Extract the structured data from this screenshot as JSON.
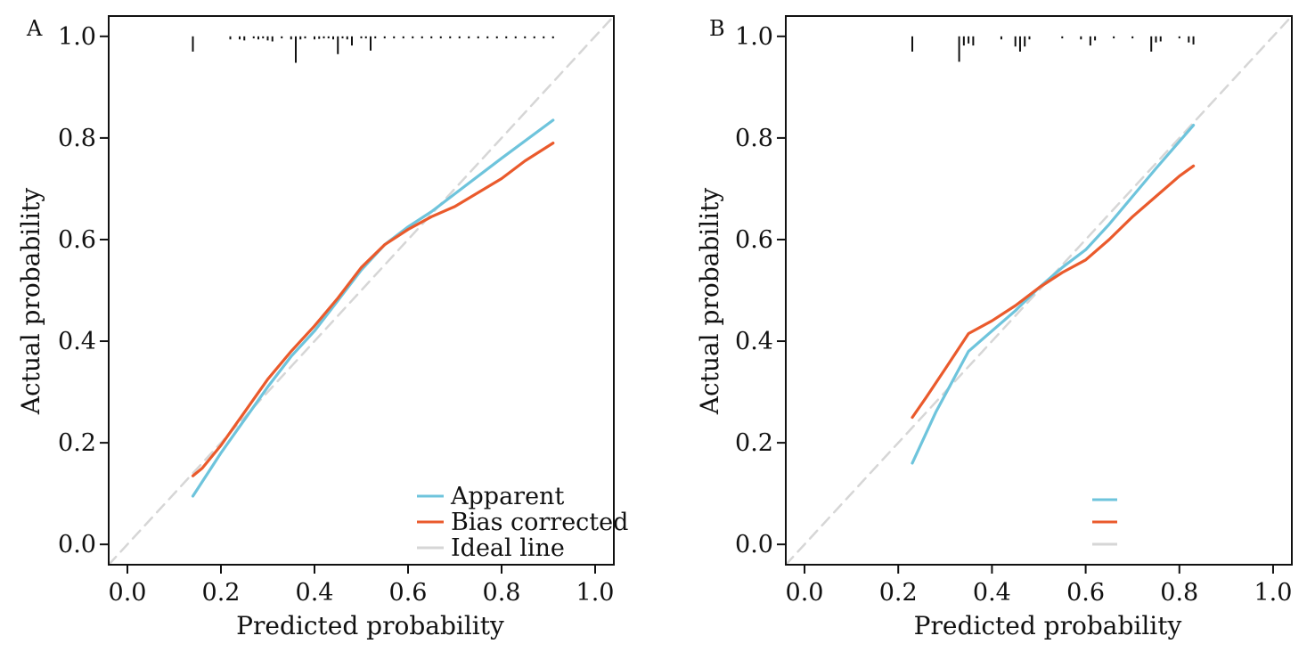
{
  "colors": {
    "apparent": "#6ec4dc",
    "bias_corrected": "#ea5a2c",
    "ideal": "#d6d6d6",
    "axis": "#111111",
    "rug": "#111111"
  },
  "chart_data": [
    {
      "type": "line",
      "panel_label": "A",
      "xlabel": "Predicted probability",
      "ylabel": "Actual probability",
      "xlim": [
        -0.04,
        1.04
      ],
      "ylim": [
        -0.04,
        1.04
      ],
      "x_ticks": [
        "0.0",
        "0.2",
        "0.4",
        "0.6",
        "0.8",
        "1.0"
      ],
      "y_ticks": [
        "0.0",
        "0.2",
        "0.4",
        "0.6",
        "0.8",
        "1.0"
      ],
      "grid": false,
      "legend": {
        "position": "bottom-right",
        "entries": [
          "Apparent",
          "Bias corrected",
          "Ideal line"
        ]
      },
      "series": [
        {
          "name": "Apparent",
          "color_key": "apparent",
          "x": [
            0.14,
            0.2,
            0.3,
            0.35,
            0.4,
            0.45,
            0.5,
            0.55,
            0.6,
            0.65,
            0.7,
            0.8,
            0.91
          ],
          "y": [
            0.095,
            0.18,
            0.31,
            0.37,
            0.42,
            0.48,
            0.54,
            0.59,
            0.625,
            0.655,
            0.69,
            0.76,
            0.835
          ]
        },
        {
          "name": "Bias corrected",
          "color_key": "bias_corrected",
          "x": [
            0.14,
            0.16,
            0.2,
            0.25,
            0.3,
            0.35,
            0.4,
            0.45,
            0.5,
            0.55,
            0.6,
            0.65,
            0.7,
            0.8,
            0.85,
            0.91
          ],
          "y": [
            0.135,
            0.15,
            0.195,
            0.26,
            0.325,
            0.38,
            0.43,
            0.485,
            0.545,
            0.59,
            0.62,
            0.645,
            0.665,
            0.72,
            0.755,
            0.79
          ]
        },
        {
          "name": "Ideal line",
          "color_key": "ideal",
          "dashed": true,
          "x": [
            -0.04,
            1.04
          ],
          "y": [
            -0.04,
            1.04
          ]
        }
      ],
      "rug": {
        "x": [
          0.14,
          0.22,
          0.24,
          0.25,
          0.27,
          0.28,
          0.29,
          0.3,
          0.31,
          0.33,
          0.35,
          0.36,
          0.37,
          0.38,
          0.4,
          0.41,
          0.42,
          0.43,
          0.44,
          0.45,
          0.46,
          0.47,
          0.48,
          0.5,
          0.51,
          0.52,
          0.53,
          0.55,
          0.57,
          0.59,
          0.61,
          0.63,
          0.65,
          0.67,
          0.69,
          0.71,
          0.73,
          0.75,
          0.77,
          0.79,
          0.81,
          0.83,
          0.85,
          0.87,
          0.89,
          0.91
        ],
        "h": [
          0.03,
          0.006,
          0.006,
          0.008,
          0.004,
          0.006,
          0.004,
          0.008,
          0.01,
          0.004,
          0.006,
          0.052,
          0.006,
          0.004,
          0.006,
          0.005,
          0.004,
          0.004,
          0.006,
          0.035,
          0.004,
          0.006,
          0.018,
          0.004,
          0.004,
          0.028,
          0.004,
          0.004,
          0.004,
          0.004,
          0.004,
          0.004,
          0.004,
          0.004,
          0.004,
          0.004,
          0.004,
          0.004,
          0.004,
          0.004,
          0.004,
          0.004,
          0.004,
          0.004,
          0.004,
          0.004
        ]
      }
    },
    {
      "type": "line",
      "panel_label": "B",
      "xlabel": "Predicted probability",
      "ylabel": "Actual probability",
      "xlim": [
        -0.04,
        1.04
      ],
      "ylim": [
        -0.04,
        1.04
      ],
      "x_ticks": [
        "0.0",
        "0.2",
        "0.4",
        "0.6",
        "0.8",
        "1.0"
      ],
      "y_ticks": [
        "0.0",
        "0.2",
        "0.4",
        "0.6",
        "0.8",
        "1.0"
      ],
      "grid": false,
      "legend": {
        "position": "bottom-center",
        "entries": [
          "",
          "",
          ""
        ]
      },
      "series": [
        {
          "name": "",
          "color_key": "apparent",
          "x": [
            0.23,
            0.28,
            0.35,
            0.4,
            0.45,
            0.5,
            0.55,
            0.6,
            0.65,
            0.7,
            0.75,
            0.83
          ],
          "y": [
            0.16,
            0.26,
            0.38,
            0.42,
            0.46,
            0.505,
            0.545,
            0.58,
            0.63,
            0.685,
            0.74,
            0.825
          ]
        },
        {
          "name": "",
          "color_key": "bias_corrected",
          "x": [
            0.23,
            0.26,
            0.3,
            0.35,
            0.4,
            0.45,
            0.5,
            0.55,
            0.6,
            0.65,
            0.7,
            0.75,
            0.8,
            0.83
          ],
          "y": [
            0.25,
            0.29,
            0.345,
            0.415,
            0.44,
            0.47,
            0.505,
            0.535,
            0.56,
            0.6,
            0.645,
            0.685,
            0.725,
            0.745
          ]
        },
        {
          "name": "",
          "color_key": "ideal",
          "dashed": true,
          "x": [
            -0.04,
            1.04
          ],
          "y": [
            -0.04,
            1.04
          ]
        }
      ],
      "rug": {
        "x": [
          0.23,
          0.33,
          0.34,
          0.35,
          0.36,
          0.42,
          0.45,
          0.46,
          0.47,
          0.48,
          0.55,
          0.59,
          0.61,
          0.62,
          0.66,
          0.7,
          0.74,
          0.75,
          0.76,
          0.8,
          0.82,
          0.83
        ],
        "h": [
          0.03,
          0.05,
          0.018,
          0.014,
          0.018,
          0.006,
          0.02,
          0.03,
          0.02,
          0.006,
          0.004,
          0.006,
          0.018,
          0.008,
          0.004,
          0.004,
          0.03,
          0.012,
          0.01,
          0.004,
          0.012,
          0.016
        ]
      }
    }
  ]
}
